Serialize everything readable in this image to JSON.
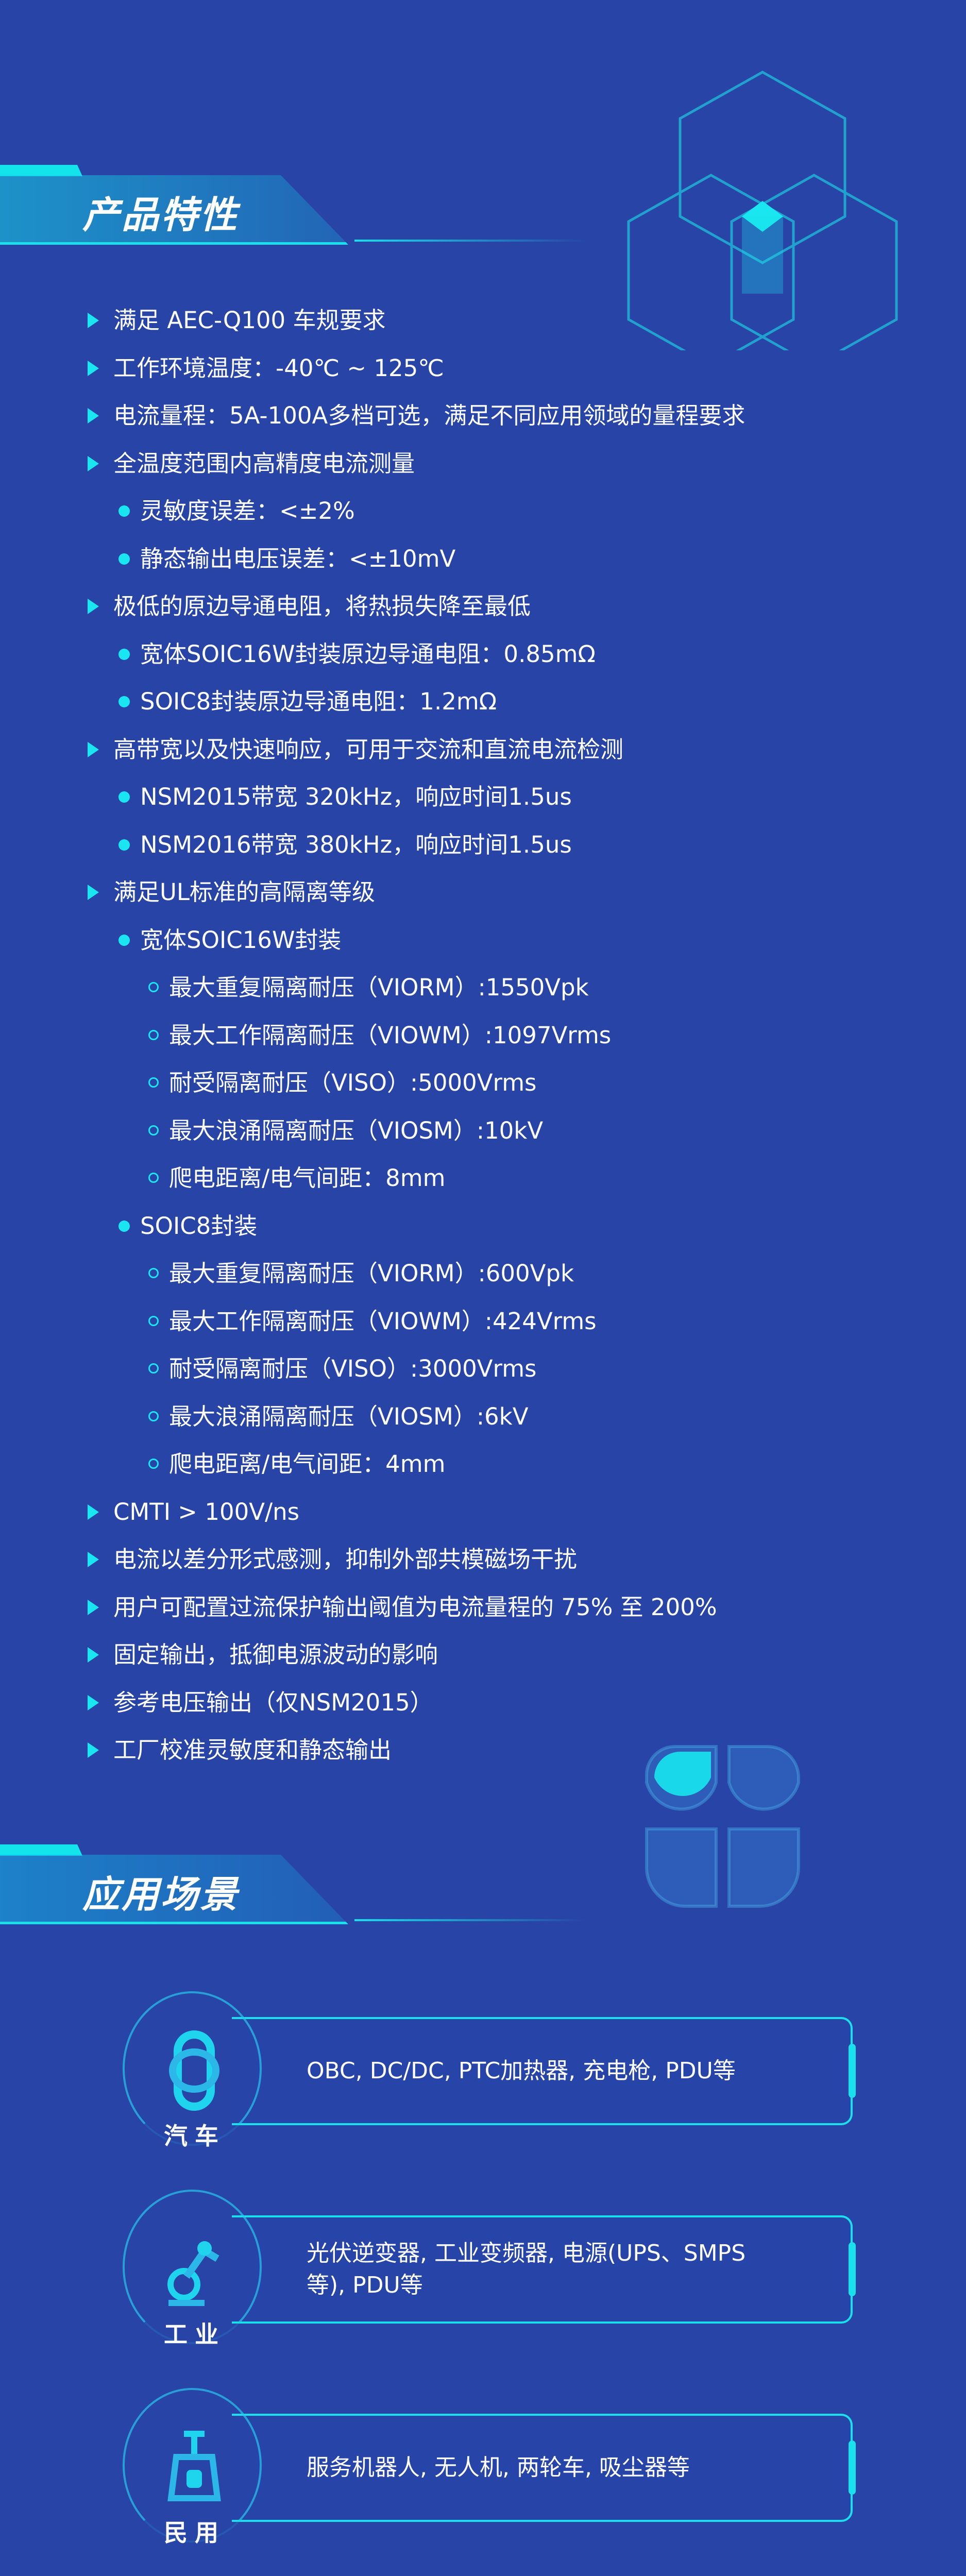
{
  "features": {
    "title": "产品特性",
    "items": [
      {
        "level": 1,
        "text": "满足 AEC-Q100 车规要求"
      },
      {
        "level": 1,
        "text": "工作环境温度：-40℃ ~ 125℃"
      },
      {
        "level": 1,
        "text": "电流量程：5A-100A多档可选，满足不同应用领域的量程要求"
      },
      {
        "level": 1,
        "text": "全温度范围内高精度电流测量"
      },
      {
        "level": 2,
        "text": "灵敏度误差：<±2%"
      },
      {
        "level": 2,
        "text": "静态输出电压误差：<±10mV"
      },
      {
        "level": 1,
        "text": "极低的原边导通电阻，将热损失降至最低"
      },
      {
        "level": 2,
        "text": "宽体SOIC16W封装原边导通电阻：0.85mΩ"
      },
      {
        "level": 2,
        "text": "SOIC8封装原边导通电阻：1.2mΩ"
      },
      {
        "level": 1,
        "text": "高带宽以及快速响应，可用于交流和直流电流检测"
      },
      {
        "level": 2,
        "text": "NSM2015带宽 320kHz，响应时间1.5us"
      },
      {
        "level": 2,
        "text": "NSM2016带宽 380kHz，响应时间1.5us"
      },
      {
        "level": 1,
        "text": "满足UL标准的高隔离等级"
      },
      {
        "level": 2,
        "text": "宽体SOIC16W封装"
      },
      {
        "level": 3,
        "text": "最大重复隔离耐压（VIORM）:1550Vpk"
      },
      {
        "level": 3,
        "text": "最大工作隔离耐压（VIOWM）:1097Vrms"
      },
      {
        "level": 3,
        "text": "耐受隔离耐压（VISO）:5000Vrms"
      },
      {
        "level": 3,
        "text": "最大浪涌隔离耐压（VIOSM）:10kV"
      },
      {
        "level": 3,
        "text": "爬电距离/电气间距：8mm"
      },
      {
        "level": 2,
        "text": "SOIC8封装"
      },
      {
        "level": 3,
        "text": "最大重复隔离耐压（VIORM）:600Vpk"
      },
      {
        "level": 3,
        "text": "最大工作隔离耐压（VIOWM）:424Vrms"
      },
      {
        "level": 3,
        "text": "耐受隔离耐压（VISO）:3000Vrms"
      },
      {
        "level": 3,
        "text": "最大浪涌隔离耐压（VIOSM）:6kV"
      },
      {
        "level": 3,
        "text": "爬电距离/电气间距：4mm"
      },
      {
        "level": 1,
        "text": "CMTI > 100V/ns"
      },
      {
        "level": 1,
        "text": "电流以差分形式感测，抑制外部共模磁场干扰"
      },
      {
        "level": 1,
        "text": "用户可配置过流保护输出阈值为电流量程的 75% 至 200%"
      },
      {
        "level": 1,
        "text": "固定输出，抵御电源波动的影响"
      },
      {
        "level": 1,
        "text": "参考电压输出（仅NSM2015）"
      },
      {
        "level": 1,
        "text": "工厂校准灵敏度和静态输出"
      }
    ]
  },
  "applications": {
    "title": "应用场景",
    "items": [
      {
        "label": "汽车",
        "icon": "car-icon",
        "text": "OBC, DC/DC, PTC加热器, 充电枪, PDU等"
      },
      {
        "label": "工业",
        "icon": "robot-arm-icon",
        "text": "光伏逆变器, 工业变频器, 电源(UPS、SMPS等), PDU等"
      },
      {
        "label": "民用",
        "icon": "vacuum-robot-icon",
        "text": "服务机器人, 无人机, 两轮车, 吸尘器等"
      }
    ]
  },
  "colors": {
    "accent": "#19e6f0",
    "bg_top": "#16a9c6",
    "bg_bottom": "#2744a6"
  }
}
